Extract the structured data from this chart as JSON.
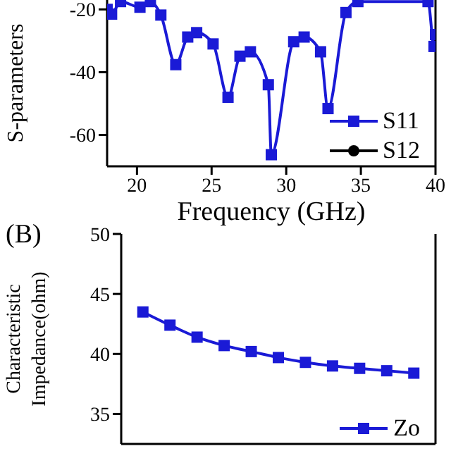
{
  "chart_data": [
    {
      "type": "line",
      "xlabel": "Frequency (GHz)",
      "ylabel": "S-parameters",
      "x": [
        18,
        18.3,
        18.9,
        20.2,
        20.9,
        21.6,
        22.6,
        23.4,
        24,
        25.1,
        26.1,
        26.9,
        27.6,
        28.8,
        29,
        30.5,
        31.2,
        32.3,
        32.8,
        34,
        34.8,
        39.5,
        39.9,
        40
      ],
      "series": [
        {
          "name": "S11",
          "color": "#1a1ad6",
          "marker": "square",
          "values": [
            -20,
            -21.5,
            -17.5,
            -19.3,
            -17.5,
            -21.8,
            -37.6,
            -28.8,
            -27.4,
            -31,
            -48,
            -34.9,
            -33.5,
            -44,
            -66.3,
            -30.3,
            -28.8,
            -33.5,
            -51.6,
            -21,
            -17.5,
            -17.5,
            -31.8,
            -28
          ]
        },
        {
          "name": "S12",
          "color": "#000000",
          "marker": "circle",
          "values": [
            null,
            null,
            null,
            null,
            null,
            null,
            null,
            null,
            null,
            null,
            null,
            null,
            null,
            null,
            null,
            null,
            null,
            null,
            null,
            null,
            null,
            null,
            null,
            null
          ]
        }
      ],
      "xlim": [
        18,
        40
      ],
      "xticks": [
        20,
        25,
        30,
        35,
        40
      ],
      "ylim": [
        -70,
        -17
      ],
      "yticks": [
        -60,
        -40,
        -20
      ],
      "legend": "bottom right"
    },
    {
      "type": "line",
      "annotations": [
        "(B)"
      ],
      "ylabel": "Characteristic Impedance(ohm)",
      "categories": [
        null,
        null,
        null,
        null,
        null,
        null,
        null,
        null,
        null,
        null,
        null
      ],
      "series": [
        {
          "name": "Zo",
          "color": "#1a1ad6",
          "marker": "square",
          "values": [
            43.5,
            42.4,
            41.4,
            40.7,
            40.2,
            39.7,
            39.3,
            39.0,
            38.8,
            38.6,
            38.4
          ]
        }
      ],
      "ylim": [
        32.5,
        50
      ],
      "yticks": [
        35,
        40,
        45,
        50
      ],
      "legend": "bottom right",
      "tick_labels": "y"
    }
  ]
}
